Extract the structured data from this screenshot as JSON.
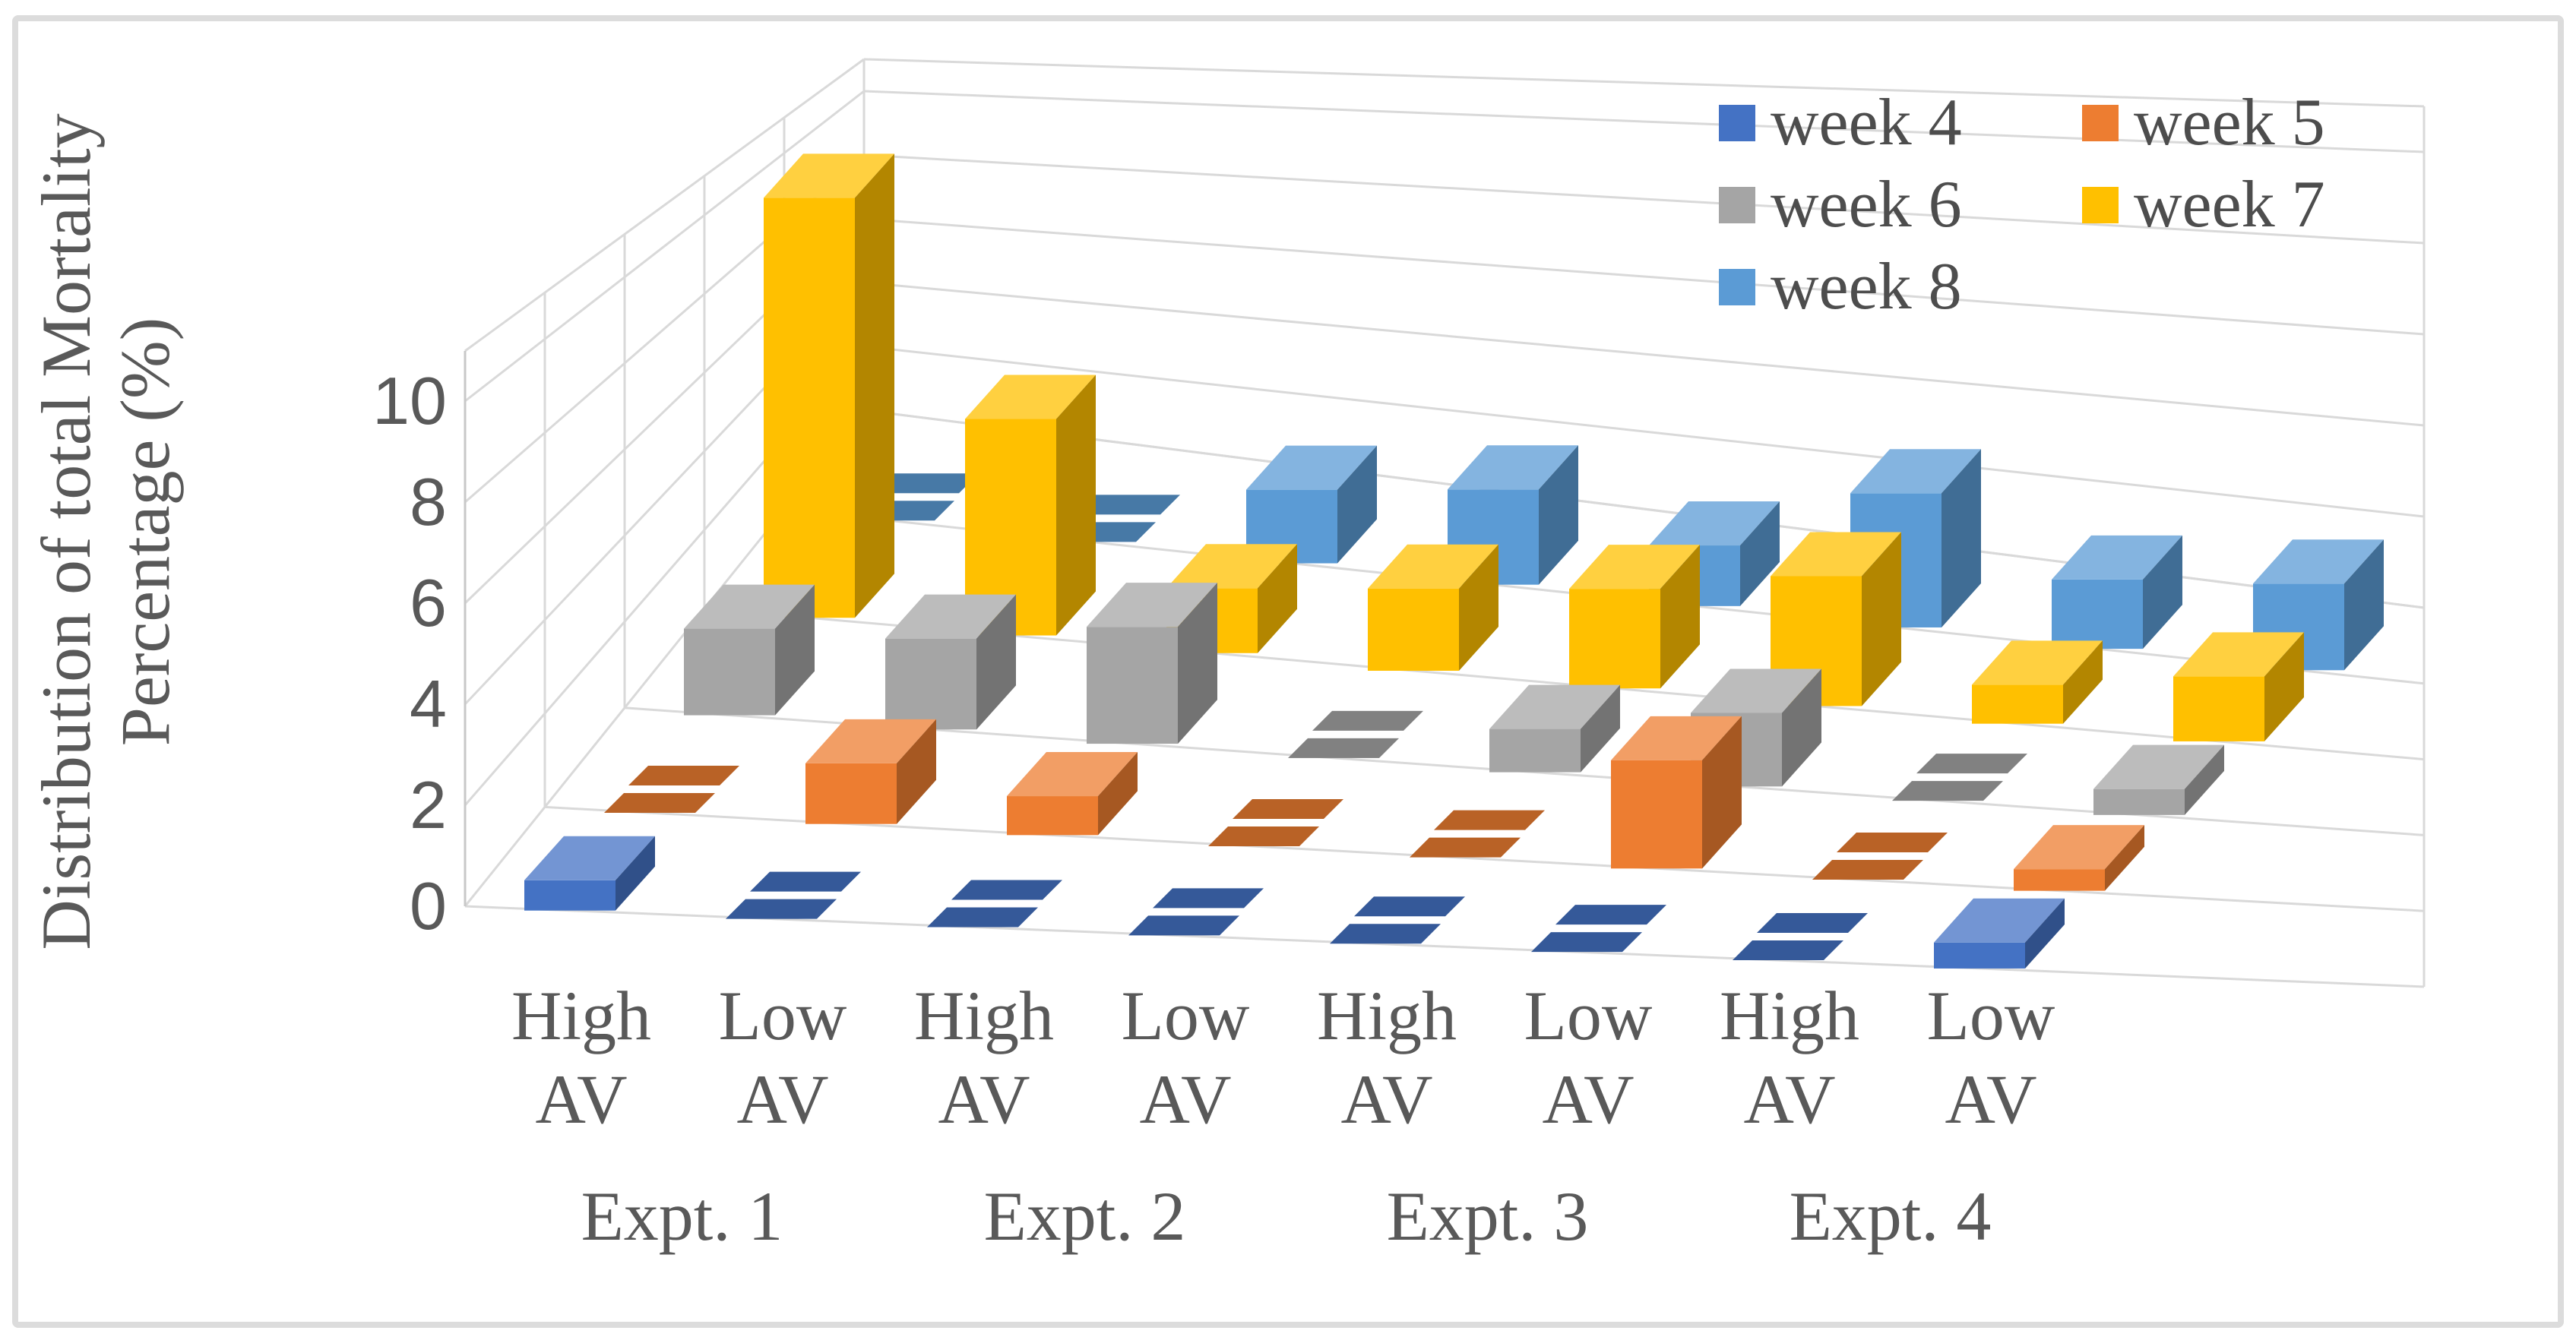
{
  "figure": {
    "background_color": "#FFFFFF",
    "border_color": "#DCDCDC",
    "text_color": "#595959",
    "gridline_color": "#D9D9D9"
  },
  "chart_data": {
    "type": "bar",
    "projection": "3d-column",
    "title": "",
    "ylabel_lines": [
      "Distribution of total Mortality",
      "Percentage (%)"
    ],
    "xlabel": "",
    "y_ticks": [
      0,
      2,
      4,
      6,
      8,
      10
    ],
    "ylim": [
      0,
      11
    ],
    "grid": true,
    "legend_position": "top-right",
    "experiments": [
      "Expt. 1",
      "Expt. 2",
      "Expt. 3",
      "Expt. 4"
    ],
    "categories": [
      {
        "experiment": "Expt. 1",
        "condition": "High AV"
      },
      {
        "experiment": "Expt. 1",
        "condition": "Low AV"
      },
      {
        "experiment": "Expt. 2",
        "condition": "High AV"
      },
      {
        "experiment": "Expt. 2",
        "condition": "Low AV"
      },
      {
        "experiment": "Expt. 3",
        "condition": "High AV"
      },
      {
        "experiment": "Expt. 3",
        "condition": "Low AV"
      },
      {
        "experiment": "Expt. 4",
        "condition": "High AV"
      },
      {
        "experiment": "Expt. 4",
        "condition": "Low AV"
      }
    ],
    "series": [
      {
        "name": "week 4",
        "color": "#4472C4",
        "values": [
          0.7,
          0,
          0,
          0,
          0,
          0,
          0,
          0.6
        ]
      },
      {
        "name": "week 5",
        "color": "#ED7D31",
        "values": [
          0,
          1.4,
          0.9,
          0,
          0,
          2.5,
          0,
          0.5
        ]
      },
      {
        "name": "week 6",
        "color": "#A5A5A5",
        "values": [
          2.0,
          2.1,
          2.7,
          0,
          1.0,
          1.7,
          0,
          0.6
        ]
      },
      {
        "name": "week 7",
        "color": "#FFC000",
        "values": [
          9.7,
          5.0,
          1.5,
          1.9,
          2.3,
          3.0,
          0.9,
          1.5
        ]
      },
      {
        "name": "week 8",
        "color": "#5B9BD5",
        "values": [
          0,
          0,
          1.7,
          2.2,
          1.4,
          3.1,
          1.6,
          2.0
        ]
      }
    ]
  }
}
